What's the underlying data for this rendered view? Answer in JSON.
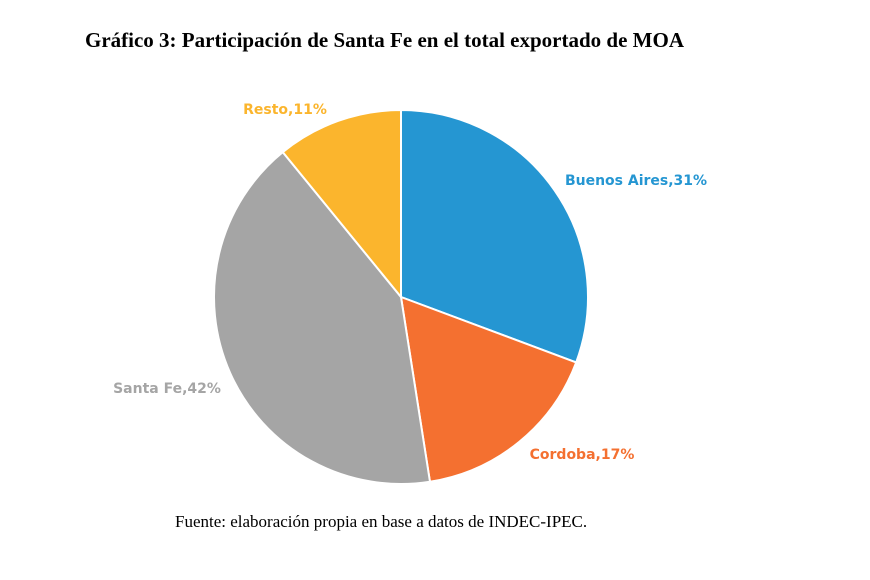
{
  "chart_data": {
    "type": "pie",
    "title": "Gráfico 3: Participación de Santa Fe en el total exportado de MOA",
    "slices": [
      {
        "name": "Buenos Aires",
        "value": 31,
        "label": "Buenos Aires,31%",
        "color": "#2596d2"
      },
      {
        "name": "Cordoba",
        "value": 17,
        "label": "Cordoba,17%",
        "color": "#f47030"
      },
      {
        "name": "Santa Fe",
        "value": 42,
        "label": "Santa Fe,42%",
        "color": "#a5a5a5"
      },
      {
        "name": "Resto",
        "value": 11,
        "label": "Resto,11%",
        "color": "#fbb52d"
      }
    ],
    "start_angle_deg": 0,
    "direction": "clockwise",
    "legend": "none",
    "data_labels": "outside"
  },
  "source": "Fuente: elaboración propia en base a datos de INDEC-IPEC."
}
